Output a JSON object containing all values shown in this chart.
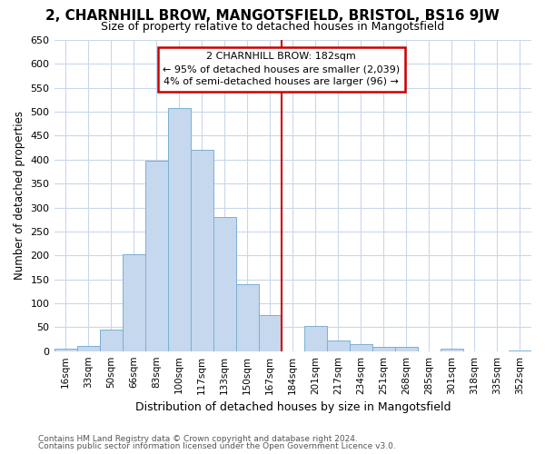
{
  "title": "2, CHARNHILL BROW, MANGOTSFIELD, BRISTOL, BS16 9JW",
  "subtitle": "Size of property relative to detached houses in Mangotsfield",
  "xlabel": "Distribution of detached houses by size in Mangotsfield",
  "ylabel": "Number of detached properties",
  "categories": [
    "16sqm",
    "33sqm",
    "50sqm",
    "66sqm",
    "83sqm",
    "100sqm",
    "117sqm",
    "133sqm",
    "150sqm",
    "167sqm",
    "184sqm",
    "201sqm",
    "217sqm",
    "234sqm",
    "251sqm",
    "268sqm",
    "285sqm",
    "301sqm",
    "318sqm",
    "335sqm",
    "352sqm"
  ],
  "values": [
    5,
    10,
    45,
    202,
    397,
    507,
    420,
    280,
    140,
    75,
    0,
    52,
    22,
    15,
    8,
    8,
    0,
    5,
    0,
    0,
    2
  ],
  "bar_color": "#c5d8ed",
  "bar_edge_color": "#7bafd4",
  "vline_color": "#cc0000",
  "annotation_title": "2 CHARNHILL BROW: 182sqm",
  "annotation_line1": "← 95% of detached houses are smaller (2,039)",
  "annotation_line2": "4% of semi-detached houses are larger (96) →",
  "annotation_box_color": "#ffffff",
  "annotation_box_edgecolor": "#cc0000",
  "ylim": [
    0,
    650
  ],
  "yticks": [
    0,
    50,
    100,
    150,
    200,
    250,
    300,
    350,
    400,
    450,
    500,
    550,
    600,
    650
  ],
  "footnote1": "Contains HM Land Registry data © Crown copyright and database right 2024.",
  "footnote2": "Contains public sector information licensed under the Open Government Licence v3.0.",
  "bg_color": "#ffffff",
  "grid_color": "#c8d8eb",
  "title_fontsize": 11,
  "subtitle_fontsize": 9
}
